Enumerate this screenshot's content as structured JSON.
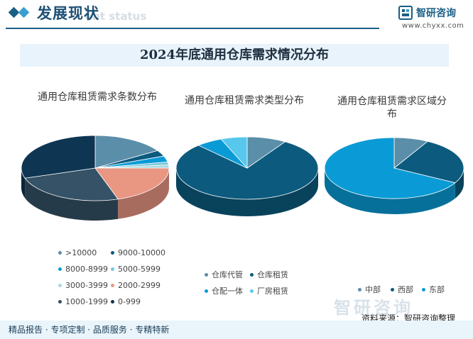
{
  "header": {
    "section_title": "发展现状",
    "section_watermark": "ent status",
    "logo_name": "智研咨询",
    "logo_url": "www.chyxx.com"
  },
  "main_title": "2024年底通用仓库需求情况分布",
  "footer": {
    "source": "资料来源：智研咨询整理",
    "tagline": "精品报告 · 专项定制 · 品质服务 · 专精特新",
    "watermark": "智研咨询"
  },
  "chart_data": [
    {
      "type": "pie",
      "title": "通用仓库租赁需求条数分布",
      "categories": [
        ">10000",
        "9000-10000",
        "8000-8999",
        "5000-5999",
        "3000-3999",
        "2000-2999",
        "1000-1999",
        "0-999"
      ],
      "values": [
        16,
        3,
        3,
        1.5,
        1.5,
        20,
        25,
        30
      ],
      "colors": [
        "#5b8ea8",
        "#0c5b7f",
        "#0a9bd6",
        "#79c7dc",
        "#a6d8dd",
        "#e99683",
        "#355266",
        "#0e3552"
      ]
    },
    {
      "type": "pie",
      "title": "通用仓库租赁需求类型分布",
      "categories": [
        "仓库代管",
        "仓库租赁",
        "仓配一体",
        "厂房租赁"
      ],
      "values": [
        9,
        79,
        6,
        6
      ],
      "colors": [
        "#5b8ea8",
        "#0c5b7f",
        "#0a9bd6",
        "#58c7ee"
      ]
    },
    {
      "type": "pie",
      "title": "通用仓库租赁需求区域分布",
      "categories": [
        "中部",
        "西部",
        "东部"
      ],
      "values": [
        8,
        25,
        67
      ],
      "colors": [
        "#5b8ea8",
        "#0c5b7f",
        "#0a9bd6"
      ]
    }
  ]
}
